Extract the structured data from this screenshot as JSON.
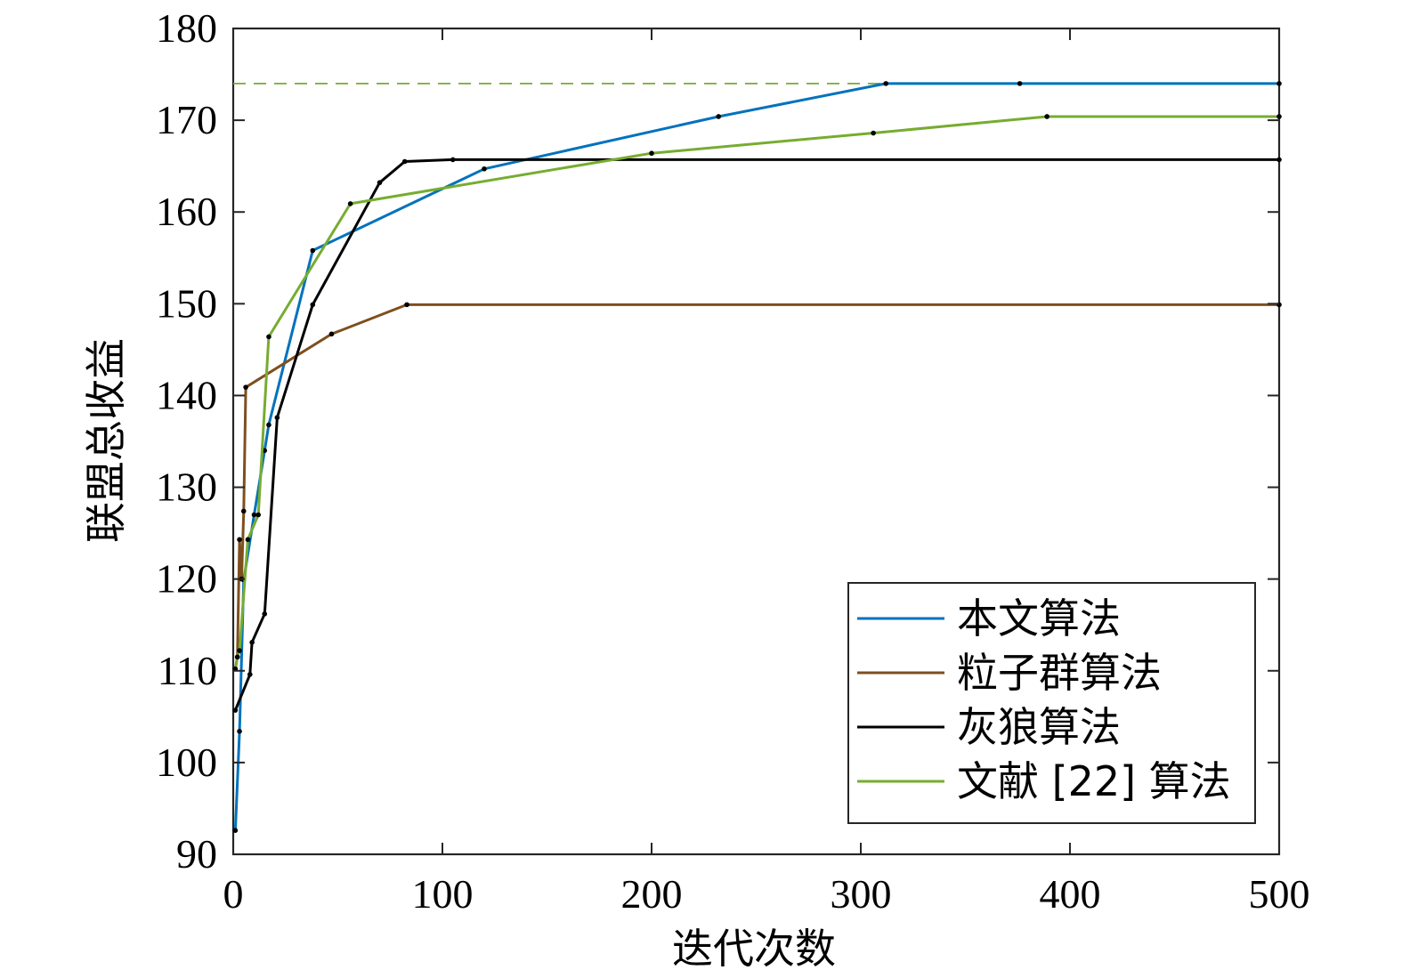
{
  "chart_data": {
    "type": "line",
    "xlabel": "迭代次数",
    "ylabel": "联盟总收益",
    "xlim": [
      0,
      500
    ],
    "ylim": [
      90,
      180
    ],
    "xticks": [
      0,
      100,
      200,
      300,
      400,
      500
    ],
    "yticks": [
      90,
      100,
      110,
      120,
      130,
      140,
      150,
      160,
      170,
      180
    ],
    "grid": false,
    "legend_position": "bottom-right",
    "reference_line": {
      "y": 174,
      "style": "dashed",
      "color": "#77ac30"
    },
    "series": [
      {
        "name": "本文算法",
        "color": "#0072bd",
        "x": [
          1,
          3,
          5,
          10,
          15,
          17,
          38,
          120,
          232,
          312,
          376,
          500
        ],
        "y": [
          92.6,
          103.4,
          119.9,
          127,
          134,
          136.8,
          155.8,
          164.7,
          170.4,
          174,
          174,
          174
        ]
      },
      {
        "name": "粒子群算法",
        "color": "#7e4f1e",
        "x": [
          1,
          2,
          3,
          4,
          5,
          6,
          47,
          83,
          500
        ],
        "y": [
          110.2,
          111.5,
          124.3,
          120,
          127.4,
          140.9,
          146.7,
          149.9,
          149.9
        ]
      },
      {
        "name": "灰狼算法",
        "color": "#000000",
        "x": [
          1,
          8,
          9,
          15,
          21,
          38,
          70,
          82,
          105,
          500
        ],
        "y": [
          105.7,
          109.6,
          113.1,
          116.2,
          137.6,
          149.9,
          163.2,
          165.5,
          165.7,
          165.7
        ]
      },
      {
        "name": "文献 [22] 算法",
        "color": "#77ac30",
        "x": [
          1,
          2,
          3,
          7,
          12,
          17,
          56,
          200,
          306,
          389,
          500
        ],
        "y": [
          110.2,
          111.5,
          112.2,
          124.3,
          127,
          146.4,
          160.9,
          166.4,
          168.6,
          170.4,
          170.4
        ]
      }
    ]
  }
}
